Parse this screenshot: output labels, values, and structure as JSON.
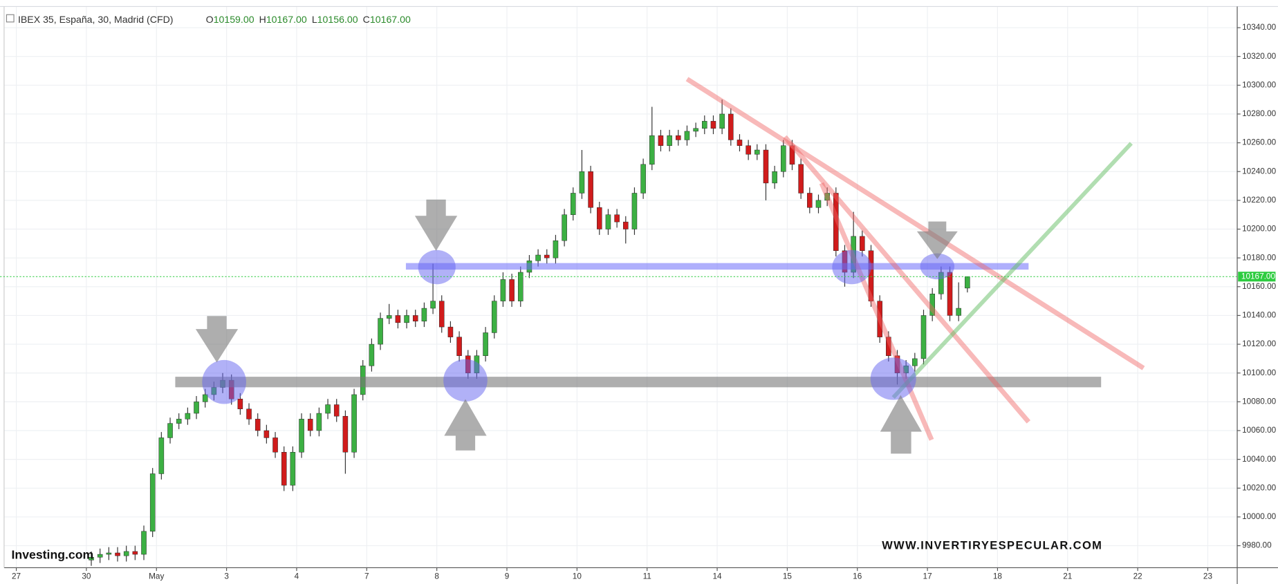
{
  "header": {
    "symbol": "IBEX 35, España, 30, Madrid (CFD)",
    "ohlc": [
      {
        "label": "O",
        "value": "10159.00"
      },
      {
        "label": "H",
        "value": "10167.00"
      },
      {
        "label": "L",
        "value": "10156.00"
      },
      {
        "label": "C",
        "value": "10167.00"
      }
    ]
  },
  "chart_data": {
    "type": "candlestick",
    "watermark": "WWW.INVERTIRYESPECULAR.COM",
    "logo": "Investing.com",
    "up_color": "#3cb043",
    "down_color": "#d01c1c",
    "grid": true,
    "last_price": {
      "value": 10167,
      "label": "10167.00"
    },
    "xlim": [
      -0.174,
      17.42
    ],
    "xticks": [
      {
        "value": 0,
        "label": "27"
      },
      {
        "value": 1,
        "label": "30"
      },
      {
        "value": 2,
        "label": "May"
      },
      {
        "value": 3,
        "label": "3"
      },
      {
        "value": 4,
        "label": "4"
      },
      {
        "value": 5,
        "label": "7"
      },
      {
        "value": 6,
        "label": "8"
      },
      {
        "value": 7,
        "label": "9"
      },
      {
        "value": 8,
        "label": "10"
      },
      {
        "value": 9,
        "label": "11"
      },
      {
        "value": 10,
        "label": "14"
      },
      {
        "value": 11,
        "label": "15"
      },
      {
        "value": 12,
        "label": "16"
      },
      {
        "value": 13,
        "label": "17"
      },
      {
        "value": 14,
        "label": "18"
      },
      {
        "value": 15,
        "label": "21"
      },
      {
        "value": 16,
        "label": "22"
      },
      {
        "value": 17,
        "label": "23"
      }
    ],
    "ylim": [
      9964.7,
      10354.7
    ],
    "yticks": [
      {
        "value": 9980,
        "label": "9980.00"
      },
      {
        "value": 10000,
        "label": "10000.00"
      },
      {
        "value": 10020,
        "label": "10020.00"
      },
      {
        "value": 10040,
        "label": "10040.00"
      },
      {
        "value": 10060,
        "label": "10060.00"
      },
      {
        "value": 10080,
        "label": "10080.00"
      },
      {
        "value": 10100,
        "label": "10100.00"
      },
      {
        "value": 10120,
        "label": "10120.00"
      },
      {
        "value": 10140,
        "label": "10140.00"
      },
      {
        "value": 10160,
        "label": "10160.00"
      },
      {
        "value": 10180,
        "label": "10180.00"
      },
      {
        "value": 10200,
        "label": "10200.00"
      },
      {
        "value": 10220,
        "label": "10220.00"
      },
      {
        "value": 10240,
        "label": "10240.00"
      },
      {
        "value": 10260,
        "label": "10260.00"
      },
      {
        "value": 10280,
        "label": "10280.00"
      },
      {
        "value": 10300,
        "label": "10300.00"
      },
      {
        "value": 10320,
        "label": "10320.00"
      },
      {
        "value": 10340,
        "label": "10340.00"
      }
    ],
    "x": [
      1.07,
      1.195,
      1.32,
      1.445,
      1.57,
      1.695,
      1.82,
      1.945,
      2.07,
      2.195,
      2.32,
      2.445,
      2.57,
      2.695,
      2.82,
      2.945,
      3.07,
      3.195,
      3.32,
      3.445,
      3.57,
      3.695,
      3.82,
      3.945,
      4.07,
      4.195,
      4.32,
      4.445,
      4.57,
      4.695,
      4.82,
      4.945,
      5.07,
      5.195,
      5.32,
      5.445,
      5.57,
      5.695,
      5.82,
      5.945,
      6.07,
      6.195,
      6.32,
      6.445,
      6.57,
      6.695,
      6.82,
      6.945,
      7.07,
      7.195,
      7.32,
      7.445,
      7.57,
      7.695,
      7.82,
      7.945,
      8.07,
      8.195,
      8.32,
      8.445,
      8.57,
      8.695,
      8.82,
      8.945,
      9.07,
      9.195,
      9.32,
      9.445,
      9.57,
      9.695,
      9.82,
      9.945,
      10.07,
      10.195,
      10.32,
      10.445,
      10.57,
      10.695,
      10.82,
      10.945,
      11.07,
      11.195,
      11.32,
      11.445,
      11.57,
      11.695,
      11.82,
      11.945,
      12.07,
      12.195,
      12.32,
      12.445,
      12.57,
      12.695,
      12.82,
      12.945,
      13.07,
      13.195,
      13.32,
      13.445,
      13.57
    ],
    "open": [
      9970,
      9972,
      9974,
      9975,
      9973,
      9976,
      9974,
      9990,
      10030,
      10055,
      10065,
      10068,
      10072,
      10080,
      10085,
      10090,
      10095,
      10082,
      10075,
      10068,
      10060,
      10055,
      10045,
      10022,
      10045,
      10068,
      10060,
      10072,
      10078,
      10070,
      10045,
      10085,
      10105,
      10120,
      10138,
      10140,
      10135,
      10140,
      10136,
      10145,
      10150,
      10132,
      10125,
      10112,
      10100,
      10112,
      10128,
      10150,
      10165,
      10150,
      10170,
      10178,
      10182,
      10180,
      10192,
      10210,
      10225,
      10240,
      10215,
      10200,
      10210,
      10205,
      10200,
      10225,
      10245,
      10265,
      10258,
      10265,
      10262,
      10268,
      10270,
      10275,
      10270,
      10280,
      10262,
      10258,
      10252,
      10255,
      10232,
      10240,
      10258,
      10245,
      10225,
      10215,
      10220,
      10225,
      10185,
      10170,
      10195,
      10185,
      10150,
      10125,
      10112,
      10100,
      10105,
      10110,
      10140,
      10155,
      10170,
      10140,
      10159
    ],
    "high": [
      9976,
      9978,
      9979,
      9979,
      9980,
      9980,
      9994,
      10034,
      10059,
      10069,
      10072,
      10076,
      10084,
      10089,
      10094,
      10100,
      10099,
      10086,
      10079,
      10072,
      10064,
      10059,
      10049,
      10049,
      10072,
      10072,
      10076,
      10082,
      10082,
      10074,
      10089,
      10109,
      10124,
      10142,
      10148,
      10144,
      10144,
      10144,
      10149,
      10176,
      10154,
      10136,
      10129,
      10116,
      10116,
      10132,
      10154,
      10170,
      10169,
      10174,
      10182,
      10186,
      10186,
      10196,
      10214,
      10229,
      10255,
      10244,
      10219,
      10214,
      10214,
      10209,
      10229,
      10249,
      10285,
      10269,
      10269,
      10269,
      10272,
      10274,
      10279,
      10279,
      10290,
      10284,
      10266,
      10262,
      10259,
      10259,
      10244,
      10262,
      10262,
      10249,
      10229,
      10224,
      10229,
      10229,
      10189,
      10212,
      10199,
      10189,
      10154,
      10129,
      10116,
      10109,
      10114,
      10144,
      10159,
      10174,
      10174,
      10163,
      10167
    ],
    "low": [
      9966,
      9968,
      9970,
      9969,
      9969,
      9970,
      9970,
      9986,
      10026,
      10051,
      10061,
      10064,
      10068,
      10076,
      10081,
      10086,
      10078,
      10071,
      10064,
      10056,
      10051,
      10041,
      10018,
      10018,
      10041,
      10056,
      10056,
      10068,
      10066,
      10030,
      10041,
      10081,
      10101,
      10116,
      10134,
      10131,
      10131,
      10132,
      10132,
      10141,
      10128,
      10121,
      10108,
      10096,
      10096,
      10108,
      10124,
      10146,
      10146,
      10146,
      10166,
      10174,
      10176,
      10176,
      10188,
      10206,
      10221,
      10211,
      10196,
      10196,
      10201,
      10190,
      10196,
      10221,
      10241,
      10254,
      10254,
      10258,
      10258,
      10264,
      10266,
      10266,
      10266,
      10258,
      10254,
      10248,
      10248,
      10220,
      10228,
      10236,
      10241,
      10221,
      10211,
      10211,
      10216,
      10181,
      10160,
      10166,
      10181,
      10146,
      10121,
      10108,
      10092,
      10096,
      10101,
      10106,
      10136,
      10151,
      10136,
      10136,
      10156
    ],
    "close": [
      9972,
      9974,
      9975,
      9973,
      9976,
      9974,
      9990,
      10030,
      10055,
      10065,
      10068,
      10072,
      10080,
      10085,
      10090,
      10095,
      10082,
      10075,
      10068,
      10060,
      10055,
      10045,
      10022,
      10045,
      10068,
      10060,
      10072,
      10078,
      10070,
      10045,
      10085,
      10105,
      10120,
      10138,
      10140,
      10135,
      10140,
      10136,
      10145,
      10150,
      10132,
      10125,
      10112,
      10100,
      10112,
      10128,
      10150,
      10165,
      10150,
      10170,
      10178,
      10182,
      10180,
      10192,
      10210,
      10225,
      10240,
      10215,
      10200,
      10210,
      10205,
      10200,
      10225,
      10245,
      10265,
      10258,
      10265,
      10262,
      10268,
      10270,
      10275,
      10270,
      10280,
      10262,
      10258,
      10252,
      10255,
      10232,
      10240,
      10258,
      10245,
      10225,
      10215,
      10220,
      10225,
      10185,
      10170,
      10195,
      10185,
      10150,
      10125,
      10112,
      10100,
      10105,
      10110,
      10140,
      10155,
      10170,
      10140,
      10145,
      10167
    ]
  }
}
